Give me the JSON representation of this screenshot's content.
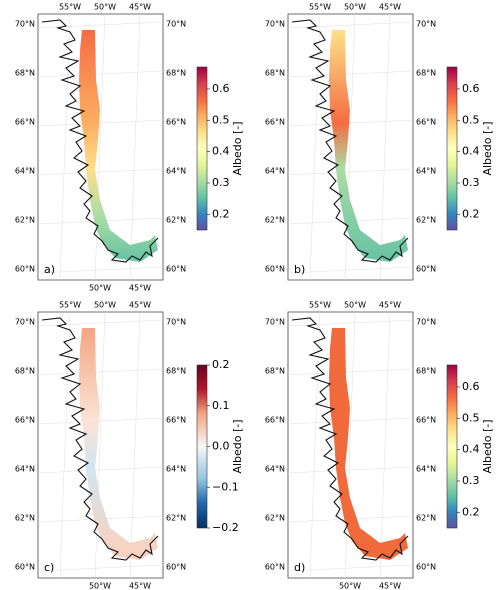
{
  "panels": [
    {
      "label": "a)",
      "top_lon": [
        "55°W",
        "50°W",
        "45°W"
      ],
      "bottom_lon": [
        "50°W",
        "45°W"
      ],
      "lat": [
        "70°N",
        "68°N",
        "66°N",
        "64°N",
        "62°N",
        "60°N"
      ],
      "colorbar": {
        "label": "Albedo [-]",
        "clim": [
          0.15,
          0.67
        ],
        "colormap": "Spectral_r",
        "ticks": [
          0.2,
          0.3,
          0.4,
          0.5,
          0.6
        ]
      }
    },
    {
      "label": "b)",
      "top_lon": [
        "55°W",
        "50°W",
        "45°W"
      ],
      "bottom_lon": [],
      "lat": [
        "70°N",
        "68°N",
        "66°N",
        "64°N",
        "62°N",
        "60°N"
      ],
      "colorbar": {
        "label": "Albedo [-]",
        "clim": [
          0.15,
          0.67
        ],
        "colormap": "Spectral_r",
        "ticks": [
          0.2,
          0.3,
          0.4,
          0.5,
          0.6
        ]
      }
    },
    {
      "label": "c)",
      "top_lon": [
        "55°W",
        "50°W",
        "45°W"
      ],
      "bottom_lon": [
        "50°W",
        "45°W"
      ],
      "lat": [
        "70°N",
        "68°N",
        "66°N",
        "64°N",
        "62°N",
        "60°N"
      ],
      "colorbar": {
        "label": "Albedo [-]",
        "clim": [
          -0.2,
          0.2
        ],
        "colormap": "RdBu_r",
        "ticks": [
          {
            "value": -0.2,
            "label": "−0.2"
          },
          {
            "value": -0.1,
            "label": "−0.1"
          },
          {
            "value": 0,
            "label": "0.0"
          },
          0.1,
          0.2
        ]
      }
    },
    {
      "label": "d)",
      "top_lon": [
        "55°W",
        "50°W",
        "45°W"
      ],
      "bottom_lon": [
        "50°W",
        "45°W"
      ],
      "lat": [
        "70°N",
        "68°N",
        "66°N",
        "64°N",
        "62°N",
        "60°N"
      ],
      "colorbar": {
        "label": "Albedo [-]",
        "clim": [
          0.15,
          0.67
        ],
        "colormap": "Spectral_r",
        "ticks": [
          0.2,
          0.3,
          0.4,
          0.5,
          0.6
        ]
      }
    }
  ]
}
